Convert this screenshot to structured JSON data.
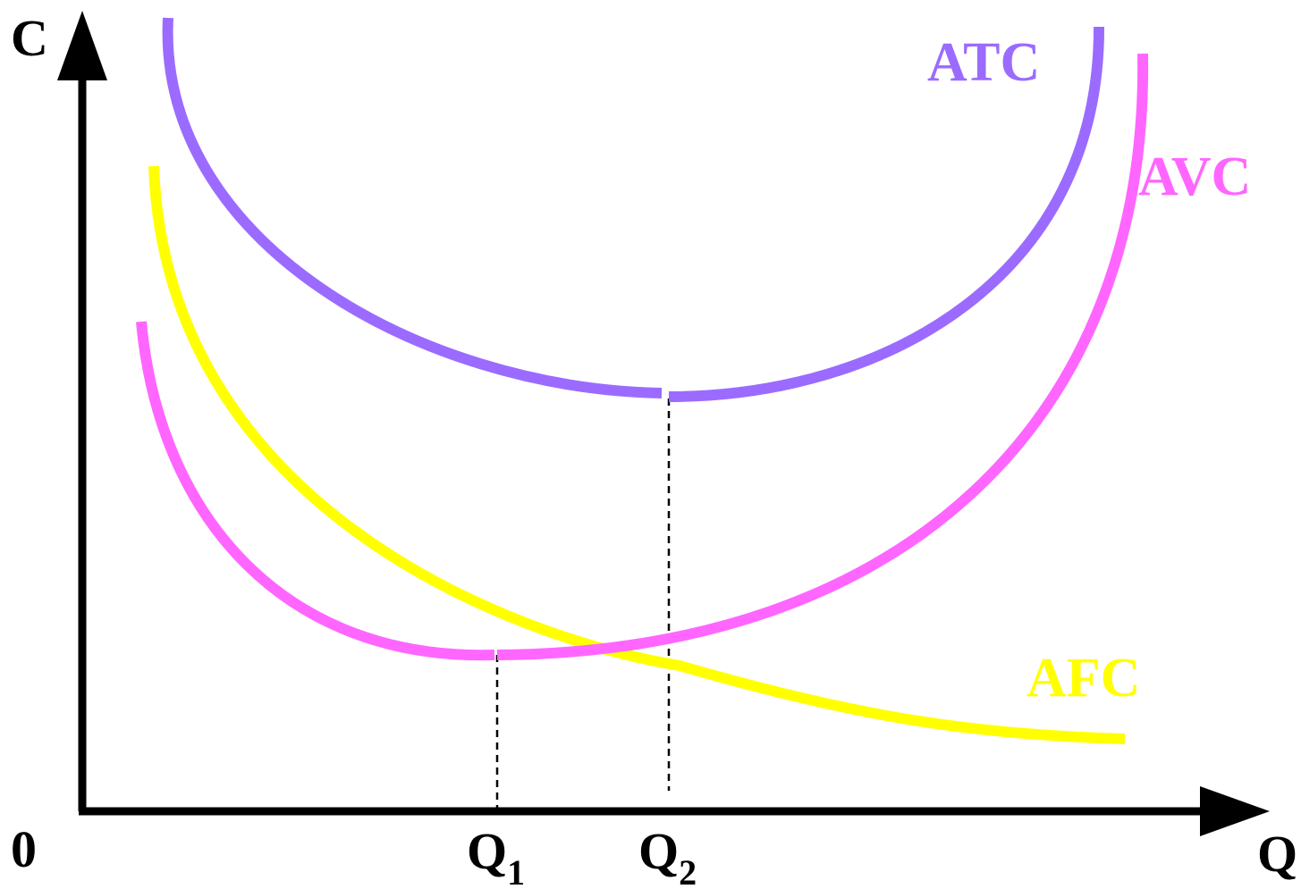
{
  "axes": {
    "y_label": "C",
    "x_label": "Q",
    "origin_label": "0"
  },
  "markers": {
    "q1": {
      "base": "Q",
      "sub": "1"
    },
    "q2": {
      "base": "Q",
      "sub": "2"
    }
  },
  "curves": {
    "atc": {
      "label": "ATC",
      "color": "#9b6bff"
    },
    "avc": {
      "label": "AVC",
      "color": "#ff66ff"
    },
    "afc": {
      "label": "AFC",
      "color": "#ffff00"
    }
  },
  "colors": {
    "axis": "#000000",
    "guide": "#000000"
  }
}
